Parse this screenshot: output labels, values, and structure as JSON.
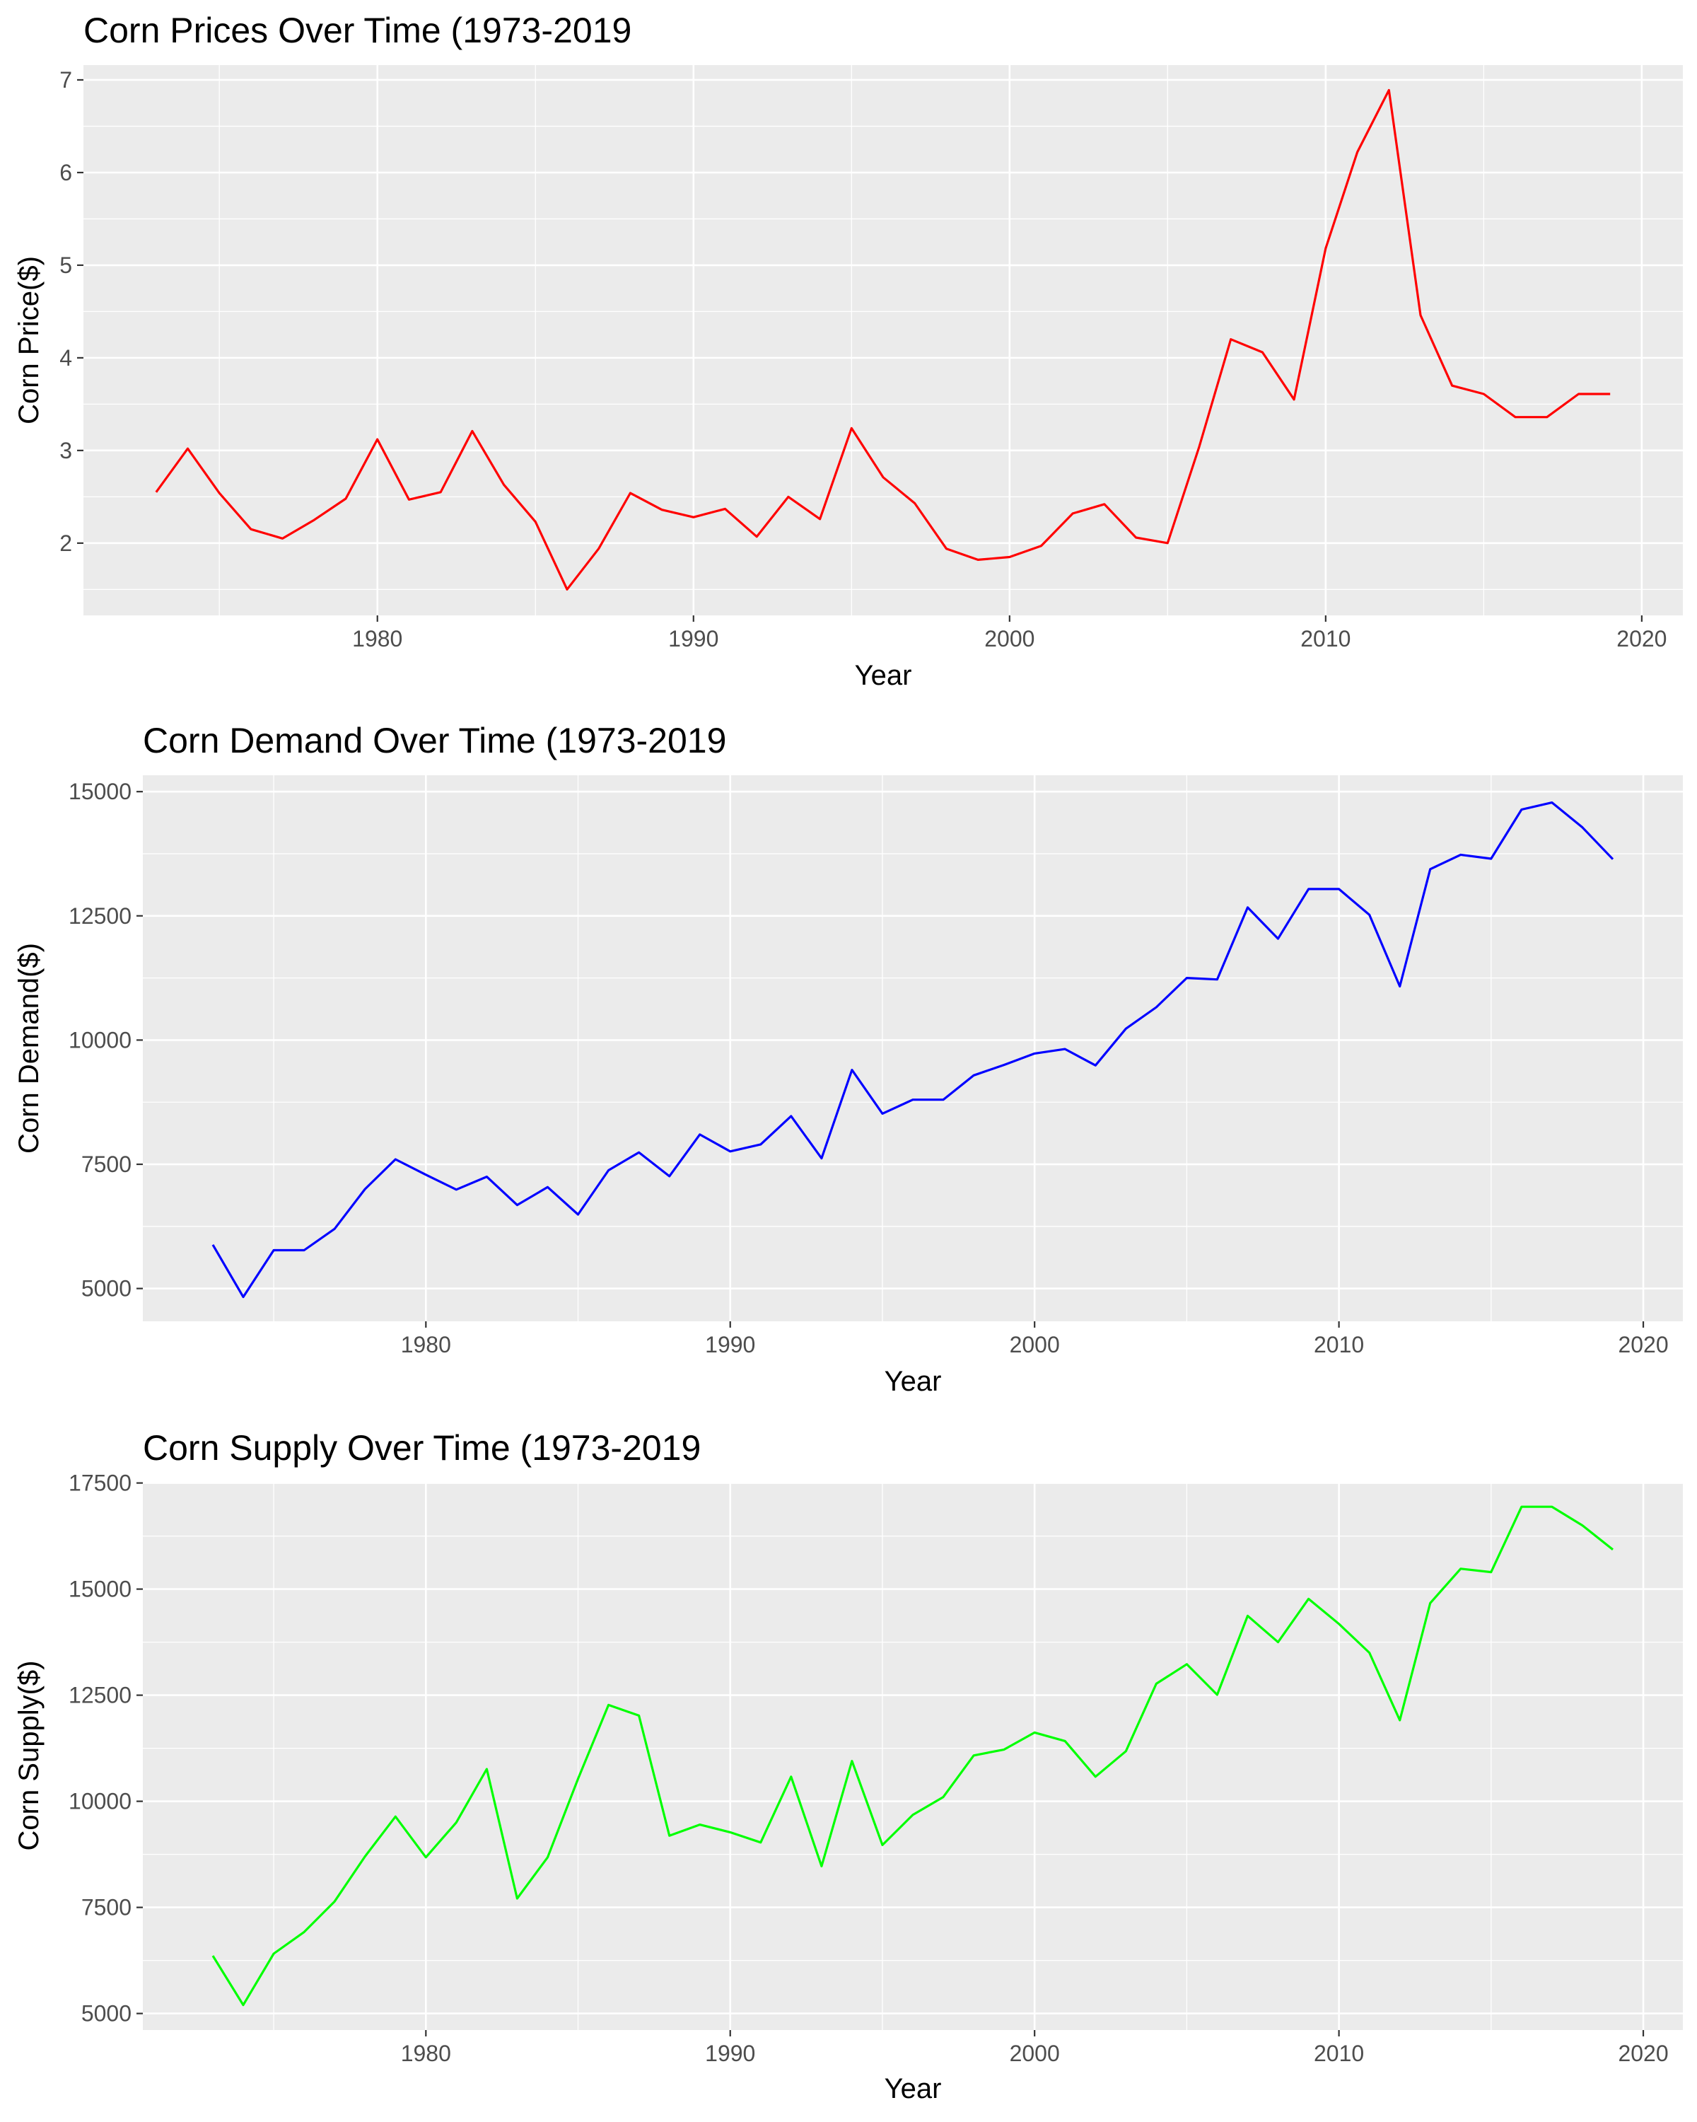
{
  "chart_data": [
    {
      "type": "line",
      "title": "Corn Prices Over Time (1973-2019",
      "xlabel": "Year",
      "ylabel": "Corn Price($)",
      "color": "#ff0000",
      "grid": true,
      "xlim": [
        1970.7,
        2021.3
      ],
      "ylim": [
        1.22,
        7.16
      ],
      "x_ticks": [
        1980,
        1990,
        2000,
        2010,
        2020
      ],
      "y_ticks": [
        2,
        3,
        4,
        5,
        6,
        7
      ],
      "x_tick_labels": [
        "1980",
        "1990",
        "2000",
        "2010",
        "2020"
      ],
      "y_tick_labels": [
        "2",
        "3",
        "4",
        "5",
        "6",
        "7"
      ],
      "x": [
        1973,
        1974,
        1975,
        1976,
        1977,
        1978,
        1979,
        1980,
        1981,
        1982,
        1983,
        1984,
        1985,
        1986,
        1987,
        1988,
        1989,
        1990,
        1991,
        1992,
        1993,
        1994,
        1995,
        1996,
        1997,
        1998,
        1999,
        2000,
        2001,
        2002,
        2003,
        2004,
        2005,
        2006,
        2007,
        2008,
        2009,
        2010,
        2011,
        2012,
        2013,
        2014,
        2015,
        2016,
        2017,
        2018,
        2019
      ],
      "y": [
        2.55,
        3.02,
        2.54,
        2.15,
        2.05,
        2.25,
        2.48,
        3.12,
        2.47,
        2.55,
        3.21,
        2.63,
        2.23,
        1.5,
        1.94,
        2.54,
        2.36,
        2.28,
        2.37,
        2.07,
        2.5,
        2.26,
        3.24,
        2.71,
        2.43,
        1.94,
        1.82,
        1.85,
        1.97,
        2.32,
        2.42,
        2.06,
        2.0,
        3.04,
        4.2,
        4.06,
        3.55,
        5.18,
        6.22,
        6.89,
        4.46,
        3.7,
        3.61,
        3.36,
        3.36,
        3.61,
        3.61
      ]
    },
    {
      "type": "line",
      "title": "Corn Demand Over Time (1973-2019",
      "xlabel": "Year",
      "ylabel": "Corn Demand($)",
      "color": "#0000ff",
      "grid": true,
      "xlim": [
        1970.7,
        2021.3
      ],
      "ylim": [
        4340,
        15330
      ],
      "x_ticks": [
        1980,
        1990,
        2000,
        2010,
        2020
      ],
      "y_ticks": [
        5000,
        7500,
        10000,
        12500,
        15000
      ],
      "x_tick_labels": [
        "1980",
        "1990",
        "2000",
        "2010",
        "2020"
      ],
      "y_tick_labels": [
        "5000",
        "7500",
        "10000",
        "12500",
        "15000"
      ],
      "x": [
        1973,
        1974,
        1975,
        1976,
        1977,
        1978,
        1979,
        1980,
        1981,
        1982,
        1983,
        1984,
        1985,
        1986,
        1987,
        1988,
        1989,
        1990,
        1991,
        1992,
        1993,
        1994,
        1995,
        1996,
        1997,
        1998,
        1999,
        2000,
        2001,
        2002,
        2003,
        2004,
        2005,
        2006,
        2007,
        2008,
        2009,
        2010,
        2011,
        2012,
        2013,
        2014,
        2015,
        2016,
        2017,
        2018,
        2019
      ],
      "y": [
        5880,
        4830,
        5770,
        5770,
        6200,
        7000,
        7600,
        7290,
        6990,
        7250,
        6680,
        7040,
        6490,
        7380,
        7740,
        7260,
        8100,
        7760,
        7900,
        8470,
        7620,
        9400,
        8520,
        8800,
        8800,
        9290,
        9500,
        9730,
        9820,
        9490,
        10230,
        10660,
        11250,
        11220,
        12670,
        12040,
        13040,
        13040,
        12520,
        11080,
        13440,
        13730,
        13650,
        14640,
        14780,
        14280,
        13640
      ]
    },
    {
      "type": "line",
      "title": "Corn Supply Over Time (1973-2019",
      "xlabel": "Year",
      "ylabel": "Corn Supply($)",
      "color": "#00ff00",
      "grid": true,
      "xlim": [
        1970.7,
        2021.3
      ],
      "ylim": [
        4610,
        17510
      ],
      "x_ticks": [
        1980,
        1990,
        2000,
        2010,
        2020
      ],
      "y_ticks": [
        5000,
        7500,
        10000,
        12500,
        15000,
        17500
      ],
      "x_tick_labels": [
        "1980",
        "1990",
        "2000",
        "2010",
        "2020"
      ],
      "y_tick_labels": [
        "5000",
        "7500",
        "10000",
        "12500",
        "15000",
        "17500"
      ],
      "x": [
        1973,
        1974,
        1975,
        1976,
        1977,
        1978,
        1979,
        1980,
        1981,
        1982,
        1983,
        1984,
        1985,
        1986,
        1987,
        1988,
        1989,
        1990,
        1991,
        1992,
        1993,
        1994,
        1995,
        1996,
        1997,
        1998,
        1999,
        2000,
        2001,
        2002,
        2003,
        2004,
        2005,
        2006,
        2007,
        2008,
        2009,
        2010,
        2011,
        2012,
        2013,
        2014,
        2015,
        2016,
        2017,
        2018,
        2019
      ],
      "y": [
        6360,
        5200,
        6410,
        6920,
        7640,
        8700,
        9640,
        8680,
        9500,
        10760,
        7710,
        8680,
        10530,
        12270,
        12020,
        9190,
        9450,
        9270,
        9030,
        10580,
        8470,
        10950,
        8970,
        9680,
        10100,
        11080,
        11220,
        11620,
        11420,
        10580,
        11180,
        12770,
        13230,
        12510,
        14370,
        13750,
        14770,
        14180,
        13500,
        11910,
        14670,
        15480,
        15400,
        16940,
        16940,
        16500,
        15930
      ]
    }
  ]
}
